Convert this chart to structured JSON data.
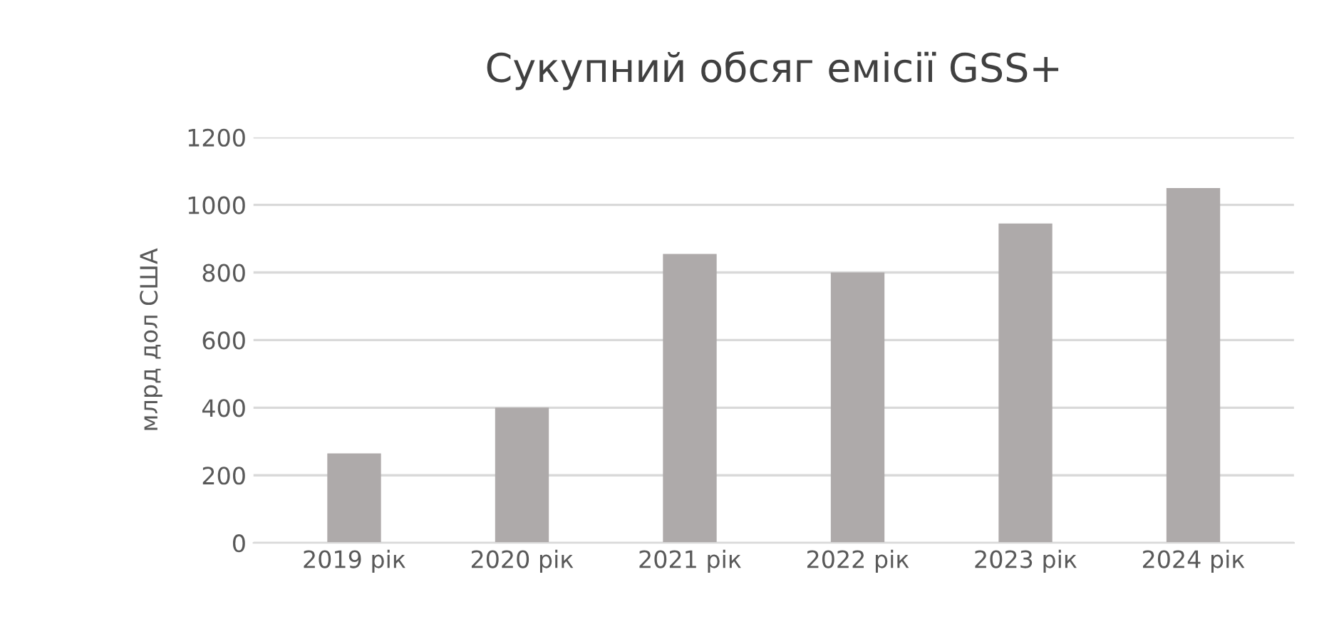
{
  "chart_data": {
    "type": "bar",
    "title": "Сукупний обсяг емісії GSS+",
    "ylabel": "млрд дол США",
    "categories": [
      "2019 рік",
      "2020 рік",
      "2021 рік",
      "2022 рік",
      "2023 рік",
      "2024 рік"
    ],
    "values": [
      265,
      400,
      855,
      800,
      945,
      1050
    ],
    "color": "#aeaaaa",
    "ylim": [
      0,
      1200
    ],
    "yticks": [
      0,
      200,
      400,
      600,
      800,
      1000,
      1200
    ],
    "grid": "y",
    "legend": false
  }
}
